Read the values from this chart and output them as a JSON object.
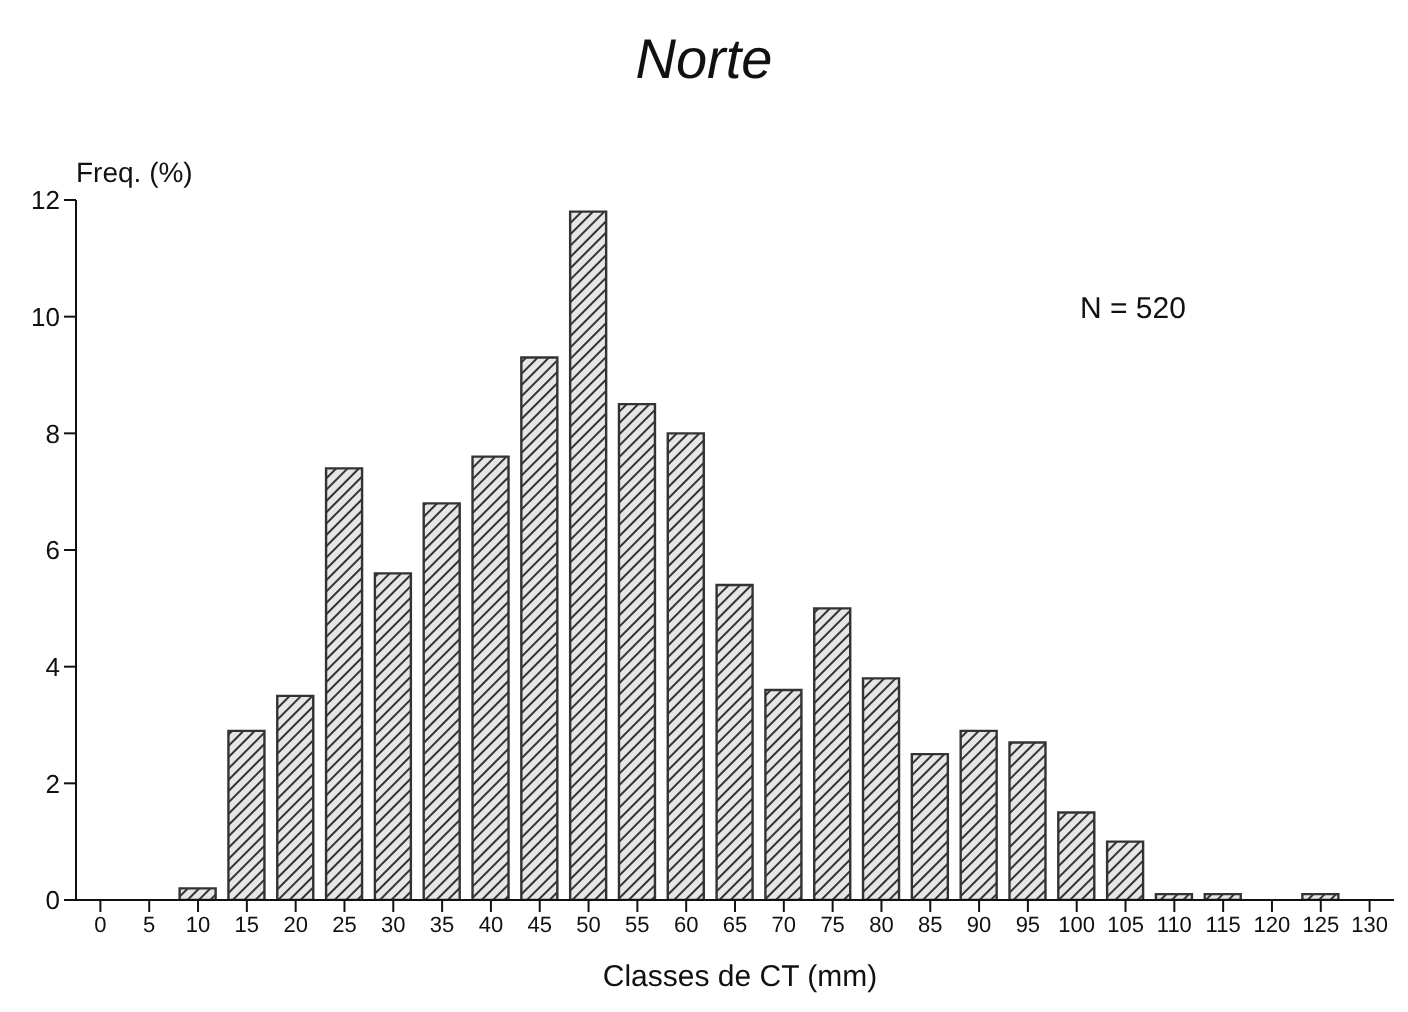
{
  "chart_data": {
    "type": "bar",
    "title": "Norte",
    "xlabel": "Classes de CT (mm)",
    "ylabel": "Freq. (%)",
    "annotations": [
      "N = 520"
    ],
    "categories": [
      "0",
      "5",
      "10",
      "15",
      "20",
      "25",
      "30",
      "35",
      "40",
      "45",
      "50",
      "55",
      "60",
      "65",
      "70",
      "75",
      "80",
      "85",
      "90",
      "95",
      "100",
      "105",
      "110",
      "115",
      "120",
      "125",
      "130"
    ],
    "values": [
      0,
      0,
      0.2,
      2.9,
      3.5,
      7.4,
      5.6,
      6.8,
      7.6,
      9.3,
      11.8,
      8.5,
      8.0,
      5.4,
      3.6,
      5.0,
      3.8,
      2.5,
      2.9,
      2.7,
      1.5,
      1.0,
      0.1,
      0.1,
      0,
      0.1,
      0
    ],
    "color": "#333333",
    "ylim": [
      0,
      12
    ],
    "yticks": [
      0,
      2,
      4,
      6,
      8,
      10,
      12
    ],
    "grid": false,
    "legend": false
  }
}
